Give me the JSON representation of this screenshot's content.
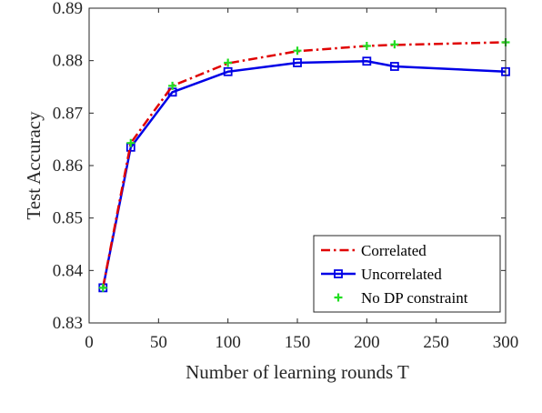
{
  "chart_data": {
    "type": "line",
    "title": "",
    "xlabel": "Number of learning rounds T",
    "ylabel": "Test Accuracy",
    "xlim": [
      0,
      300
    ],
    "ylim": [
      0.83,
      0.89
    ],
    "x_ticks": [
      0,
      50,
      100,
      150,
      200,
      250,
      300
    ],
    "x_tick_labels": [
      "0",
      "50",
      "100",
      "150",
      "200",
      "250",
      "300"
    ],
    "y_ticks": [
      0.83,
      0.84,
      0.85,
      0.86,
      0.87,
      0.88,
      0.89
    ],
    "y_tick_labels": [
      "0.83",
      "0.84",
      "0.85",
      "0.86",
      "0.87",
      "0.88",
      "0.89"
    ],
    "grid": false,
    "legend_position": "bottom-right",
    "series": [
      {
        "name": "Correlated",
        "color": "#e00000",
        "line_style": "dash-dot",
        "marker": "none",
        "x": [
          10,
          30,
          60,
          100,
          150,
          200,
          220,
          300
        ],
        "y": [
          0.8368,
          0.8643,
          0.8752,
          0.8795,
          0.8818,
          0.8828,
          0.883,
          0.8835
        ]
      },
      {
        "name": "Uncorrelated",
        "color": "#0000e6",
        "line_style": "solid",
        "marker": "square",
        "x": [
          10,
          30,
          60,
          100,
          150,
          200,
          220,
          300
        ],
        "y": [
          0.8367,
          0.8635,
          0.874,
          0.8779,
          0.8796,
          0.8799,
          0.8789,
          0.8779
        ]
      },
      {
        "name": "No DP constraint",
        "color": "#22dd22",
        "line_style": "none",
        "marker": "plus",
        "x": [
          10,
          30,
          60,
          100,
          150,
          200,
          220,
          300
        ],
        "y": [
          0.8367,
          0.8643,
          0.8752,
          0.8796,
          0.8819,
          0.8828,
          0.8831,
          0.8835
        ]
      }
    ]
  }
}
